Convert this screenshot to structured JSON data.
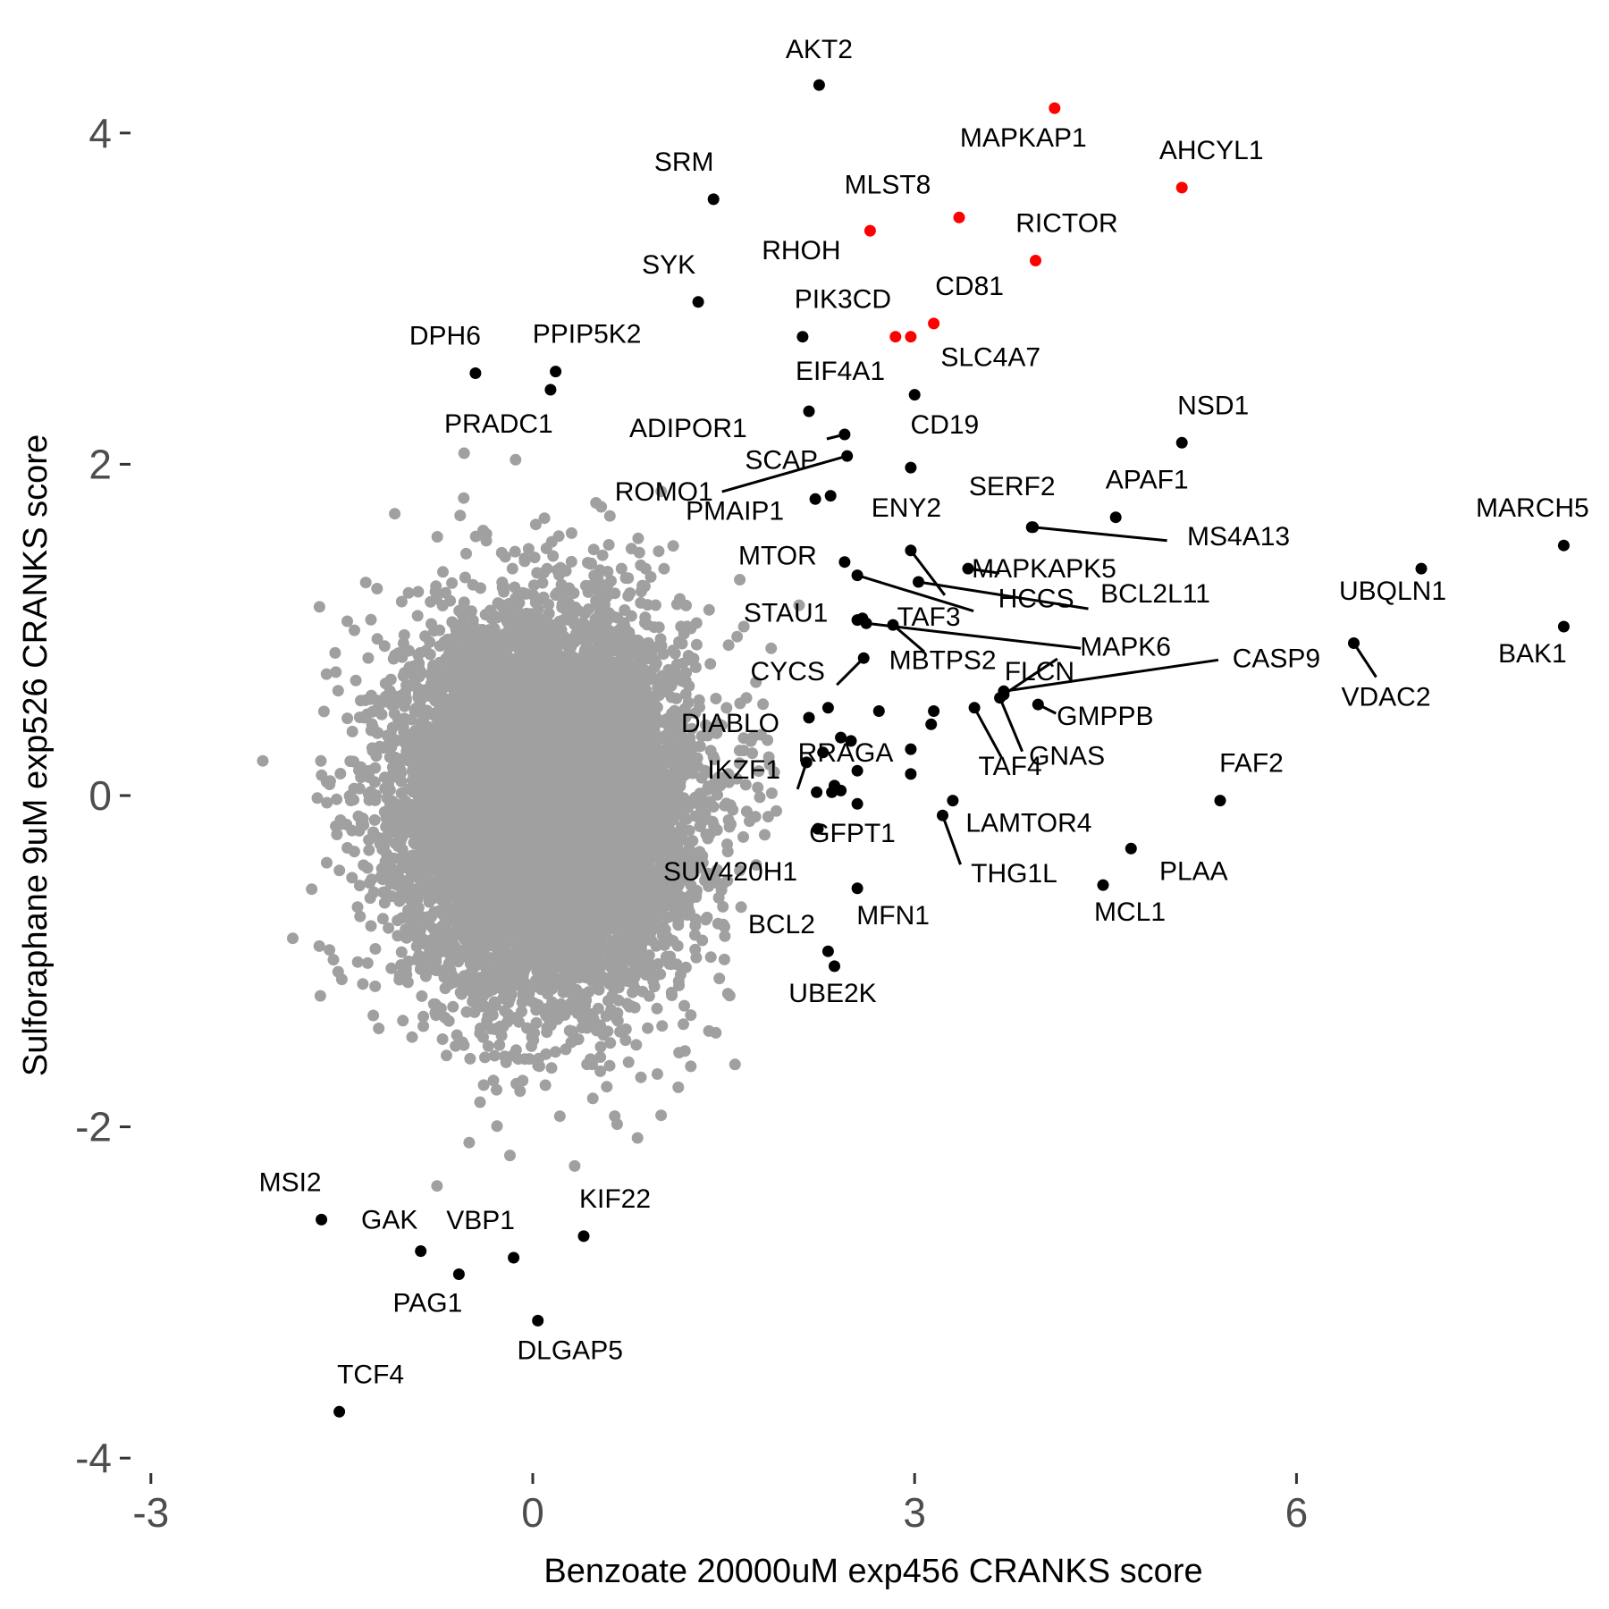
{
  "chart_data": {
    "type": "scatter",
    "xlabel": "Benzoate 20000uM exp456 CRANKS score",
    "ylabel": "Sulforaphane 9uM exp526 CRANKS score",
    "xlim": [
      -3.2,
      8.8
    ],
    "ylim": [
      -4.1,
      4.5
    ],
    "x_ticks": [
      -3,
      0,
      3,
      6
    ],
    "y_ticks": [
      -4,
      -2,
      0,
      2,
      4
    ],
    "grid": false,
    "colors": {
      "background": "#ffffff",
      "background_points": "#a0a0a0",
      "labeled_points": "#000000",
      "highlighted_points": "#ff0000",
      "tick_labels": "#4d4d4d"
    },
    "background_cloud": {
      "n": 10000,
      "x_mean": 0.1,
      "x_sd": 0.55,
      "y_mean": -0.05,
      "y_sd": 0.55,
      "note_free": true
    },
    "red_points": [
      {
        "label": "MAPKAP1",
        "x": 4.1,
        "y": 4.15
      },
      {
        "label": "AHCYL1",
        "x": 5.1,
        "y": 3.67
      },
      {
        "label": "MLST8",
        "x": 3.35,
        "y": 3.49
      },
      {
        "label": "RHOH",
        "x": 2.65,
        "y": 3.41
      },
      {
        "label": "RICTOR",
        "x": 3.95,
        "y": 3.23
      },
      {
        "label": "CD81",
        "x": 3.15,
        "y": 2.85
      },
      {
        "label": "",
        "x": 2.85,
        "y": 2.77
      },
      {
        "label": "",
        "x": 2.97,
        "y": 2.77
      }
    ],
    "labeled_points": [
      {
        "label": "AKT2",
        "x": 2.25,
        "y": 4.29
      },
      {
        "label": "SRM",
        "x": 1.42,
        "y": 3.6
      },
      {
        "label": "SYK",
        "x": 1.3,
        "y": 2.98
      },
      {
        "label": "PIK3CD",
        "x": 2.12,
        "y": 2.77
      },
      {
        "label": "DPH6",
        "x": -0.45,
        "y": 2.55
      },
      {
        "label": "PPIP5K2",
        "x": 0.18,
        "y": 2.56
      },
      {
        "label": "PRADC1",
        "x": 0.14,
        "y": 2.45
      },
      {
        "label": "EIF4A1",
        "x": 2.17,
        "y": 2.32
      },
      {
        "label": "SLC4A7",
        "x": 3.0,
        "y": 2.42
      },
      {
        "label": "ADIPOR1",
        "x": 2.45,
        "y": 2.18
      },
      {
        "label": "ROMO1",
        "x": 2.47,
        "y": 2.05
      },
      {
        "label": "CD19",
        "x": 2.97,
        "y": 1.98
      },
      {
        "label": "NSD1",
        "x": 5.1,
        "y": 2.13
      },
      {
        "label": "SCAP",
        "x": 2.34,
        "y": 1.81
      },
      {
        "label": "PMAIP1",
        "x": 2.22,
        "y": 1.79
      },
      {
        "label": "APAF1",
        "x": 4.58,
        "y": 1.68
      },
      {
        "label": "SERF2",
        "x": 3.92,
        "y": 1.62
      },
      {
        "label": "MS4A13",
        "x": 3.93,
        "y": 1.62
      },
      {
        "label": "MARCH5",
        "x": 8.1,
        "y": 1.51
      },
      {
        "label": "ENY2",
        "x": 2.97,
        "y": 1.48
      },
      {
        "label": "MAPKAPK5",
        "x": 3.42,
        "y": 1.37
      },
      {
        "label": "UBQLN1",
        "x": 6.98,
        "y": 1.37
      },
      {
        "label": "MTOR",
        "x": 2.45,
        "y": 1.41
      },
      {
        "label": "HCCS",
        "x": 2.55,
        "y": 1.33
      },
      {
        "label": "BCL2L11",
        "x": 3.03,
        "y": 1.29
      },
      {
        "label": "BAK1",
        "x": 8.1,
        "y": 1.02
      },
      {
        "label": "STAU1",
        "x": 2.55,
        "y": 1.06
      },
      {
        "label": "TAF3",
        "x": 2.83,
        "y": 1.03
      },
      {
        "label": "MAPK6",
        "x": 2.62,
        "y": 1.04
      },
      {
        "label": "VDAC2",
        "x": 6.45,
        "y": 0.92
      },
      {
        "label": "CYCS",
        "x": 2.6,
        "y": 0.83
      },
      {
        "label": "CASP9",
        "x": 3.7,
        "y": 0.63
      },
      {
        "label": "FLCN",
        "x": 3.7,
        "y": 0.61
      },
      {
        "label": "MBTPS2",
        "x": 3.15,
        "y": 0.51
      },
      {
        "label": "GMPPB",
        "x": 3.97,
        "y": 0.55
      },
      {
        "label": "TAF4",
        "x": 3.47,
        "y": 0.53
      },
      {
        "label": "GNAS",
        "x": 3.67,
        "y": 0.59
      },
      {
        "label": "DIABLO",
        "x": 2.17,
        "y": 0.47
      },
      {
        "label": "RRAGA",
        "x": 2.5,
        "y": 0.33
      },
      {
        "label": "IKZF1",
        "x": 2.15,
        "y": 0.2
      },
      {
        "label": "FAF2",
        "x": 5.4,
        "y": -0.03
      },
      {
        "label": "LAMTOR4",
        "x": 3.3,
        "y": -0.03
      },
      {
        "label": "GFPT1",
        "x": 2.37,
        "y": 0.06
      },
      {
        "label": "THG1L",
        "x": 3.22,
        "y": -0.12
      },
      {
        "label": "SUV420H1",
        "x": 2.24,
        "y": -0.2
      },
      {
        "label": "PLAA",
        "x": 4.7,
        "y": -0.32
      },
      {
        "label": "MCL1",
        "x": 4.48,
        "y": -0.54
      },
      {
        "label": "MFN1",
        "x": 2.55,
        "y": -0.56
      },
      {
        "label": "BCL2",
        "x": 2.32,
        "y": -0.94
      },
      {
        "label": "UBE2K",
        "x": 2.37,
        "y": -1.03
      },
      {
        "label": "MSI2",
        "x": -1.66,
        "y": -2.56
      },
      {
        "label": "GAK",
        "x": -0.88,
        "y": -2.75
      },
      {
        "label": "VBP1",
        "x": -0.15,
        "y": -2.79
      },
      {
        "label": "KIF22",
        "x": 0.4,
        "y": -2.66
      },
      {
        "label": "PAG1",
        "x": -0.58,
        "y": -2.89
      },
      {
        "label": "DLGAP5",
        "x": 0.04,
        "y": -3.17
      },
      {
        "label": "TCF4",
        "x": -1.52,
        "y": -3.72
      },
      {
        "label": "",
        "x": 2.59,
        "y": 1.07
      },
      {
        "label": "",
        "x": 2.32,
        "y": 0.53
      },
      {
        "label": "",
        "x": 2.72,
        "y": 0.51
      },
      {
        "label": "",
        "x": 3.13,
        "y": 0.43
      },
      {
        "label": "",
        "x": 2.28,
        "y": 0.26
      },
      {
        "label": "",
        "x": 2.55,
        "y": 0.15
      },
      {
        "label": "",
        "x": 2.97,
        "y": 0.13
      },
      {
        "label": "",
        "x": 2.97,
        "y": 0.28
      },
      {
        "label": "",
        "x": 2.35,
        "y": 0.02
      },
      {
        "label": "",
        "x": 2.42,
        "y": 0.03
      },
      {
        "label": "",
        "x": 2.55,
        "y": -0.05
      },
      {
        "label": "",
        "x": 2.23,
        "y": 0.02
      },
      {
        "label": "",
        "x": 2.42,
        "y": 0.35
      }
    ]
  }
}
